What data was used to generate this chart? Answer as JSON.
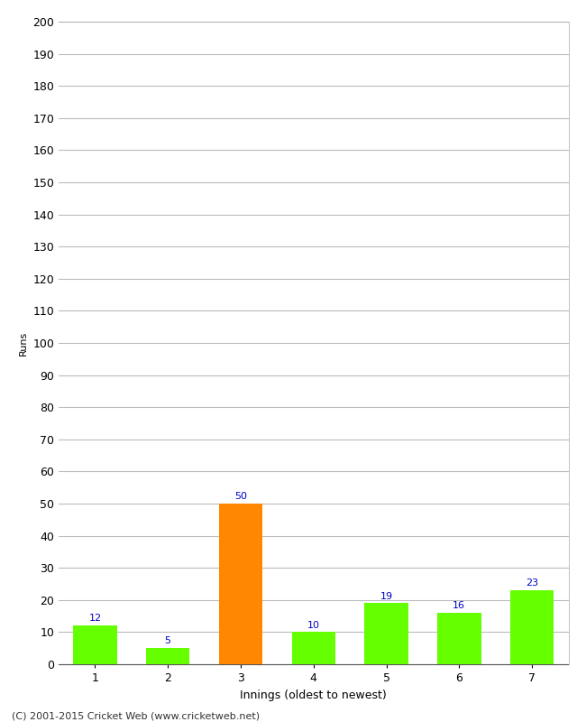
{
  "categories": [
    "1",
    "2",
    "3",
    "4",
    "5",
    "6",
    "7"
  ],
  "values": [
    12,
    5,
    50,
    10,
    19,
    16,
    23
  ],
  "bar_colors": [
    "#66ff00",
    "#66ff00",
    "#ff8800",
    "#66ff00",
    "#66ff00",
    "#66ff00",
    "#66ff00"
  ],
  "xlabel": "Innings (oldest to newest)",
  "ylabel": "Runs",
  "ylim": [
    0,
    200
  ],
  "yticks": [
    0,
    10,
    20,
    30,
    40,
    50,
    60,
    70,
    80,
    90,
    100,
    110,
    120,
    130,
    140,
    150,
    160,
    170,
    180,
    190,
    200
  ],
  "label_color": "#0000cc",
  "footer": "(C) 2001-2015 Cricket Web (www.cricketweb.net)",
  "background_color": "#ffffff",
  "grid_color": "#bbbbbb",
  "bar_width": 0.6,
  "label_fontsize": 8,
  "axis_fontsize": 9,
  "ylabel_fontsize": 8,
  "footer_fontsize": 8
}
